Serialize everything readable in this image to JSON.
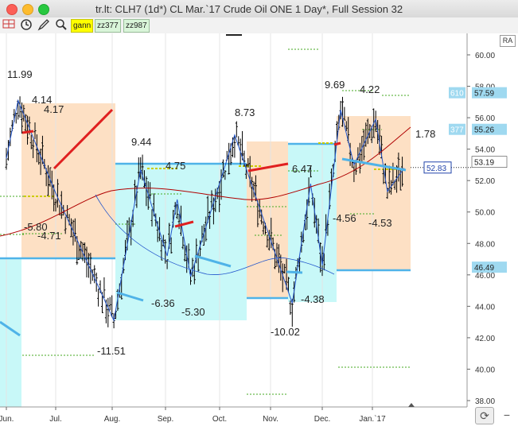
{
  "window": {
    "title": "tr.lt: CLH7 (1d*) CL Mar.`17 Crude Oil ONE 1 Day*, Full Session 32"
  },
  "toolbar": {
    "tools": [
      "grid-icon",
      "clock-icon",
      "pencil-icon",
      "zoom-icon"
    ],
    "tabs": [
      {
        "label": "gann",
        "active": true
      },
      {
        "label": "zz377",
        "active": false
      },
      {
        "label": "zz987",
        "active": false
      }
    ],
    "ra_label": "RA"
  },
  "chart_data": {
    "type": "ohlc",
    "x_labels": [
      "Jun.",
      "Jul.",
      "Aug.",
      "Sep.",
      "Oct.",
      "Nov.",
      "Dec.",
      "Jan.`17"
    ],
    "y_ticks": [
      "38.00",
      "40.00",
      "42.00",
      "44.00",
      "46.00",
      "48.00",
      "50.00",
      "52.00",
      "54.00",
      "56.00",
      "58.00",
      "60.00"
    ],
    "ylim": [
      37.5,
      61.5
    ],
    "price_tags": [
      {
        "label": "610",
        "value": "57.59"
      },
      {
        "label": "377",
        "value": "55.26"
      },
      {
        "label": "",
        "value": "53.19"
      },
      {
        "label": "",
        "value": "46.49"
      }
    ],
    "current_price_box": "52.83",
    "annotations": [
      "11.99",
      "4.14",
      "4.17",
      "9.44",
      "4.75",
      "8.73",
      "9.69",
      "4.22",
      "1.78",
      "6.47",
      "-5.80",
      "-4.71",
      "-6.36",
      "-5.30",
      "-11.51",
      "-10.02",
      "-4.38",
      "-4.56",
      "-4.53"
    ],
    "zigzag_points": [
      {
        "date": "Jun. 1",
        "price": 53.4
      },
      {
        "date": "Jun. 8",
        "price": 57.1
      },
      {
        "date": "Jul. 1",
        "price": 51.2
      },
      {
        "date": "Aug. 2",
        "price": 43.1
      },
      {
        "date": "Aug. 18",
        "price": 52.7
      },
      {
        "date": "Sep. 2",
        "price": 47.2
      },
      {
        "date": "Sep. 8",
        "price": 50.8
      },
      {
        "date": "Sep. 16",
        "price": 45.9
      },
      {
        "date": "Oct. 10",
        "price": 54.9
      },
      {
        "date": "Nov. 14",
        "price": 44.2
      },
      {
        "date": "Nov. 25",
        "price": 51.8
      },
      {
        "date": "Dec. 1",
        "price": 46.6
      },
      {
        "date": "Dec. 12",
        "price": 56.5
      },
      {
        "date": "Dec. 20",
        "price": 53.0
      },
      {
        "date": "Jan. 3",
        "price": 55.9
      },
      {
        "date": "Jan. 10",
        "price": 51.3
      },
      {
        "date": "Jan. 20",
        "price": 52.8
      }
    ],
    "colors": {
      "bars": "#000000",
      "up_zone": "#fde0c4",
      "down_zone": "#c8f8f8",
      "level_line": "#4fb3e8",
      "trend_red": "#e02020",
      "ma_line": "#b00000",
      "blue_line": "#2255cc",
      "dotted_green": "#44aa22",
      "dotted_yellow": "#cccc00"
    }
  }
}
